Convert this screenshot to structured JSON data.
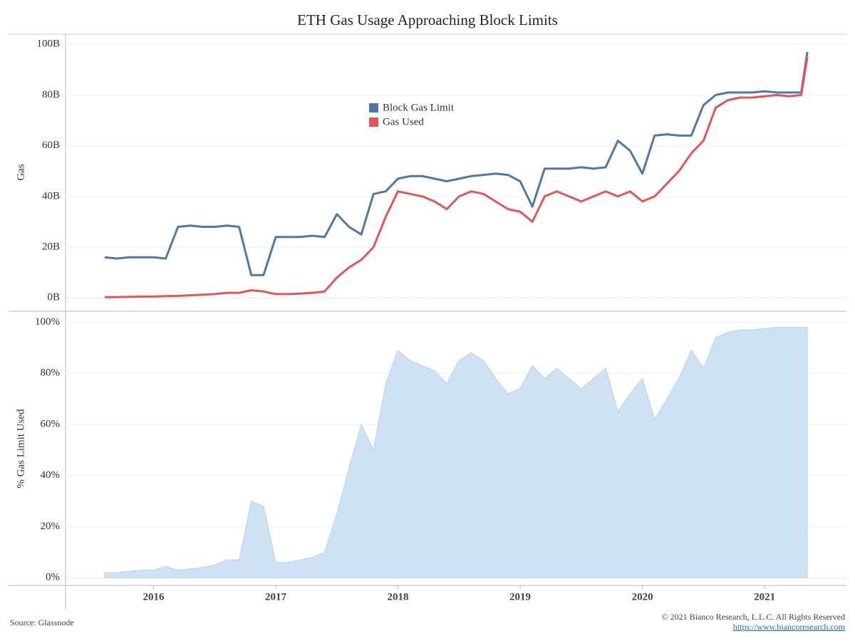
{
  "title": "ETH Gas Usage Approaching Block Limits",
  "source": "Source: Glassnode",
  "copyright": "© 2021 Bianco Research, L.L.C. All Rights Reserved",
  "url": "https://www.biancoresearch.com",
  "chart_data": [
    {
      "type": "line",
      "ylabel": "Gas",
      "x": [
        2015.6,
        2015.7,
        2015.8,
        2015.9,
        2016.0,
        2016.1,
        2016.2,
        2016.3,
        2016.4,
        2016.5,
        2016.6,
        2016.7,
        2016.8,
        2016.9,
        2017.0,
        2017.1,
        2017.2,
        2017.3,
        2017.4,
        2017.5,
        2017.6,
        2017.7,
        2017.8,
        2017.9,
        2018.0,
        2018.1,
        2018.2,
        2018.3,
        2018.4,
        2018.5,
        2018.6,
        2018.7,
        2018.8,
        2018.9,
        2019.0,
        2019.1,
        2019.2,
        2019.3,
        2019.4,
        2019.5,
        2019.6,
        2019.7,
        2019.8,
        2019.9,
        2020.0,
        2020.1,
        2020.2,
        2020.3,
        2020.4,
        2020.5,
        2020.6,
        2020.7,
        2020.8,
        2020.9,
        2021.0,
        2021.1,
        2021.2,
        2021.3,
        2021.35
      ],
      "series": [
        {
          "name": "Block Gas Limit",
          "color": "#4e79a7",
          "values": [
            16,
            15.5,
            16,
            16,
            16,
            15.5,
            28,
            28.5,
            28,
            28,
            28.5,
            28,
            9,
            9,
            24,
            24,
            24,
            24.5,
            24,
            33,
            28,
            25,
            41,
            42,
            47,
            48,
            48,
            47,
            46,
            47,
            48,
            48.5,
            49,
            48.5,
            46,
            36,
            51,
            51,
            51,
            51.5,
            51,
            51.5,
            62,
            58,
            49,
            64,
            64.5,
            64,
            64,
            76,
            80,
            81,
            81,
            81,
            81.5,
            81,
            81,
            81,
            97
          ]
        },
        {
          "name": "Gas Used",
          "color": "#e15759",
          "values": [
            0.3,
            0.3,
            0.4,
            0.5,
            0.5,
            0.7,
            0.8,
            1,
            1.2,
            1.5,
            2,
            2,
            3,
            2.5,
            1.5,
            1.5,
            1.7,
            2,
            2.5,
            8,
            12,
            15,
            20,
            32,
            42,
            41,
            40,
            38,
            35,
            40,
            42,
            41,
            38,
            35,
            34,
            30,
            40,
            42,
            40,
            38,
            40,
            42,
            40,
            42,
            38,
            40,
            45,
            50,
            57,
            62,
            75,
            78,
            79,
            79,
            79.5,
            80,
            79.5,
            80,
            95
          ]
        }
      ],
      "ylim": [
        -5,
        104
      ],
      "yticks": [
        {
          "value": 0,
          "label": "0B"
        },
        {
          "value": 20,
          "label": "20B"
        },
        {
          "value": 40,
          "label": "40B"
        },
        {
          "value": 60,
          "label": "60B"
        },
        {
          "value": 80,
          "label": "80B"
        },
        {
          "value": 100,
          "label": "100B"
        }
      ],
      "grid": true,
      "legend": "upper center"
    },
    {
      "type": "area",
      "ylabel": "% Gas Limit Used",
      "x": [
        2015.6,
        2015.7,
        2015.8,
        2015.9,
        2016.0,
        2016.1,
        2016.2,
        2016.3,
        2016.4,
        2016.5,
        2016.6,
        2016.7,
        2016.8,
        2016.9,
        2017.0,
        2017.1,
        2017.2,
        2017.3,
        2017.4,
        2017.5,
        2017.6,
        2017.7,
        2017.8,
        2017.9,
        2018.0,
        2018.1,
        2018.2,
        2018.3,
        2018.4,
        2018.5,
        2018.6,
        2018.7,
        2018.8,
        2018.9,
        2019.0,
        2019.1,
        2019.2,
        2019.3,
        2019.4,
        2019.5,
        2019.6,
        2019.7,
        2019.8,
        2019.9,
        2020.0,
        2020.1,
        2020.2,
        2020.3,
        2020.4,
        2020.5,
        2020.6,
        2020.7,
        2020.8,
        2020.9,
        2021.0,
        2021.1,
        2021.2,
        2021.3,
        2021.35
      ],
      "values": [
        2,
        2,
        2.5,
        3,
        3,
        4.5,
        3,
        3.5,
        4,
        5,
        7,
        7,
        30,
        28,
        6,
        6,
        7,
        8,
        10,
        25,
        43,
        60,
        50,
        76,
        89,
        85,
        83,
        81,
        76,
        85,
        88,
        85,
        78,
        72,
        74,
        83,
        78,
        82,
        78,
        74,
        78,
        82,
        65,
        72,
        78,
        62,
        70,
        78,
        89,
        82,
        94,
        96,
        97,
        97,
        97.5,
        98,
        98,
        98,
        98
      ],
      "color": "#cfe2f3",
      "ylim": [
        -3,
        104
      ],
      "yticks": [
        {
          "value": 0,
          "label": "0%"
        },
        {
          "value": 20,
          "label": "20%"
        },
        {
          "value": 40,
          "label": "40%"
        },
        {
          "value": 60,
          "label": "60%"
        },
        {
          "value": 80,
          "label": "80%"
        },
        {
          "value": 100,
          "label": "100%"
        }
      ],
      "xlim": [
        2015.28,
        2021.67
      ],
      "xticks": [
        2016,
        2017,
        2018,
        2019,
        2020,
        2021
      ],
      "grid": true
    }
  ]
}
